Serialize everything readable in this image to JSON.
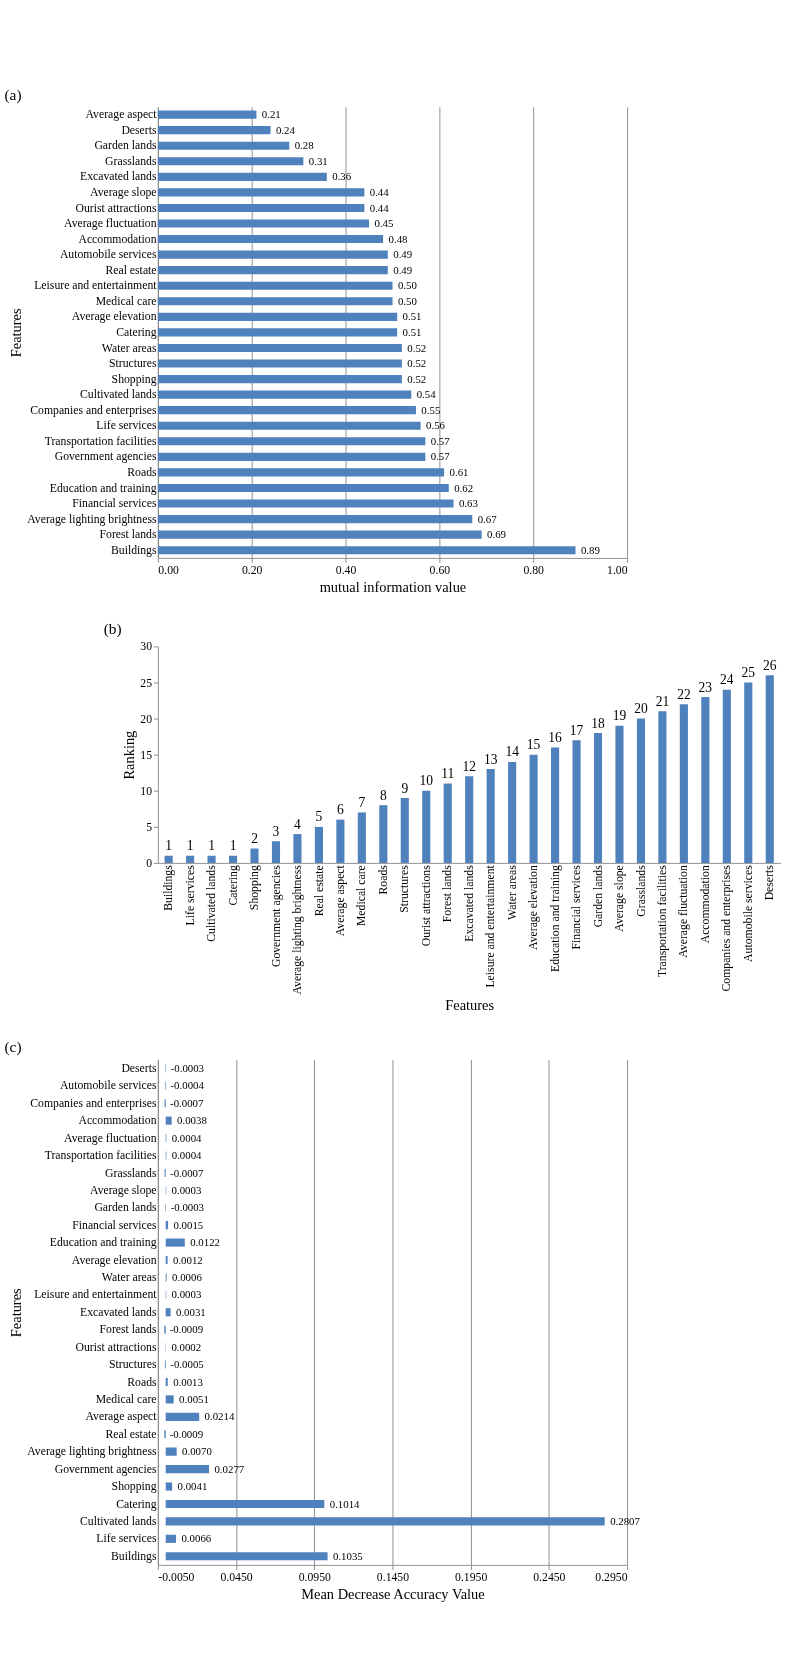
{
  "chart_data": [
    {
      "type": "bar",
      "title": "(a)",
      "orientation": "horizontal",
      "xlabel": "mutual information value",
      "ylabel": "Features",
      "categories": [
        "Average aspect",
        "Deserts",
        "Garden lands",
        "Grasslands",
        "Excavated lands",
        "Average slope",
        "Ourist attractions",
        "Average fluctuation",
        "Accommodation",
        "Automobile services",
        "Real estate",
        "Leisure and entertainment",
        "Medical care",
        "Average elevation",
        "Catering",
        "Water areas",
        "Structures",
        "Shopping",
        "Cultivated lands",
        "Companies and enterprises",
        "Life services",
        "Transportation facilities",
        "Government agencies",
        "Roads",
        "Education and training",
        "Financial services",
        "Average lighting brightness",
        "Forest lands",
        "Buildings"
      ],
      "values": [
        0.21,
        0.24,
        0.28,
        0.31,
        0.36,
        0.44,
        0.44,
        0.45,
        0.48,
        0.49,
        0.49,
        0.5,
        0.5,
        0.51,
        0.51,
        0.52,
        0.52,
        0.52,
        0.54,
        0.55,
        0.56,
        0.57,
        0.57,
        0.61,
        0.62,
        0.63,
        0.67,
        0.69,
        0.89
      ],
      "value_labels": [
        "0.21",
        "0.24",
        "0.28",
        "0.31",
        "0.36",
        "0.44",
        "0.44",
        "0.45",
        "0.48",
        "0.49",
        "0.49",
        "0.50",
        "0.50",
        "0.51",
        "0.51",
        "0.52",
        "0.52",
        "0.52",
        "0.54",
        "0.55",
        "0.56",
        "0.57",
        "0.57",
        "0.61",
        "0.62",
        "0.63",
        "0.67",
        "0.69",
        "0.89"
      ],
      "color": "#4f81bd",
      "xlim": [
        0,
        1
      ],
      "xticks": [
        {
          "value": 0,
          "label": "0.00"
        },
        {
          "value": 0.2,
          "label": "0.20"
        },
        {
          "value": 0.4,
          "label": "0.40"
        },
        {
          "value": 0.6,
          "label": "0.60"
        },
        {
          "value": 0.8,
          "label": "0.80"
        },
        {
          "value": 1,
          "label": "1.00"
        }
      ],
      "grid": "x"
    },
    {
      "type": "bar",
      "title": "(b)",
      "xlabel": "Features",
      "ylabel": "Ranking",
      "categories": [
        "Buildings",
        "Life services",
        "Cultivated lands",
        "Catering",
        "Shopping",
        "Government agencies",
        "Average lighting brightness",
        "Real estate",
        "Average aspect",
        "Medical care",
        "Roads",
        "Structures",
        "Ourist attractions",
        "Forest lands",
        "Excavated lands",
        "Leisure and entertainment",
        "Water areas",
        "Average elevation",
        "Education and training",
        "Financial services",
        "Garden lands",
        "Average slope",
        "Grasslands",
        "Transportation facilities",
        "Average fluctuation",
        "Accommodation",
        "Companies and enterprises",
        "Automobile services",
        "Deserts"
      ],
      "values": [
        1,
        1,
        1,
        1,
        2,
        3,
        4,
        5,
        6,
        7,
        8,
        9,
        10,
        11,
        12,
        13,
        14,
        15,
        16,
        17,
        18,
        19,
        20,
        21,
        22,
        23,
        24,
        25,
        26
      ],
      "data_labels": true,
      "color": "#4f81bd",
      "ylim": [
        0,
        30
      ],
      "yticks": [
        0,
        5,
        10,
        15,
        20,
        25,
        30
      ],
      "grid": false
    },
    {
      "type": "bar",
      "title": "(c)",
      "orientation": "horizontal",
      "xlabel": "Mean Decrease Accuracy Value",
      "ylabel": "Features",
      "categories": [
        "Deserts",
        "Automobile services",
        "Companies and enterprises",
        "Accommodation",
        "Average fluctuation",
        "Transportation facilities",
        "Grasslands",
        "Average slope",
        "Garden lands",
        "Financial services",
        "Education and training",
        "Average elevation",
        "Water areas",
        "Leisure and entertainment",
        "Excavated lands",
        "Forest lands",
        "Ourist attractions",
        "Structures",
        "Roads",
        "Medical care",
        "Average aspect",
        "Real estate",
        "Average lighting brightness",
        "Government agencies",
        "Shopping",
        "Catering",
        "Cultivated lands",
        "Life services",
        "Buildings"
      ],
      "values": [
        -0.0003,
        -0.0004,
        -0.0007,
        0.0038,
        0.0004,
        0.0004,
        -0.0007,
        0.0003,
        -0.0003,
        0.0015,
        0.0122,
        0.0012,
        0.0006,
        0.0003,
        0.0031,
        -0.0009,
        0.0002,
        -0.0005,
        0.0013,
        0.0051,
        0.0214,
        -0.0009,
        0.007,
        0.0277,
        0.0041,
        0.1014,
        0.2807,
        0.0066,
        0.1035
      ],
      "value_labels": [
        "-0.0003",
        "-0.0004",
        "-0.0007",
        "0.0038",
        "0.0004",
        "0.0004",
        "-0.0007",
        "0.0003",
        "-0.0003",
        "0.0015",
        "0.0122",
        "0.0012",
        "0.0006",
        "0.0003",
        "0.0031",
        "-0.0009",
        "0.0002",
        "-0.0005",
        "0.0013",
        "0.0051",
        "0.0214",
        "-0.0009",
        "0.0070",
        "0.0277",
        "0.0041",
        "0.1014",
        "0.2807",
        "0.0066",
        "0.1035"
      ],
      "color": "#4f81bd",
      "xlim": [
        -0.005,
        0.295
      ],
      "xticks": [
        {
          "value": -0.005,
          "label": "-0.0050"
        },
        {
          "value": 0.045,
          "label": "0.0450"
        },
        {
          "value": 0.095,
          "label": "0.0950"
        },
        {
          "value": 0.145,
          "label": "0.1450"
        },
        {
          "value": 0.195,
          "label": "0.1950"
        },
        {
          "value": 0.245,
          "label": "0.2450"
        },
        {
          "value": 0.295,
          "label": "0.2950"
        }
      ],
      "grid": "x"
    }
  ]
}
